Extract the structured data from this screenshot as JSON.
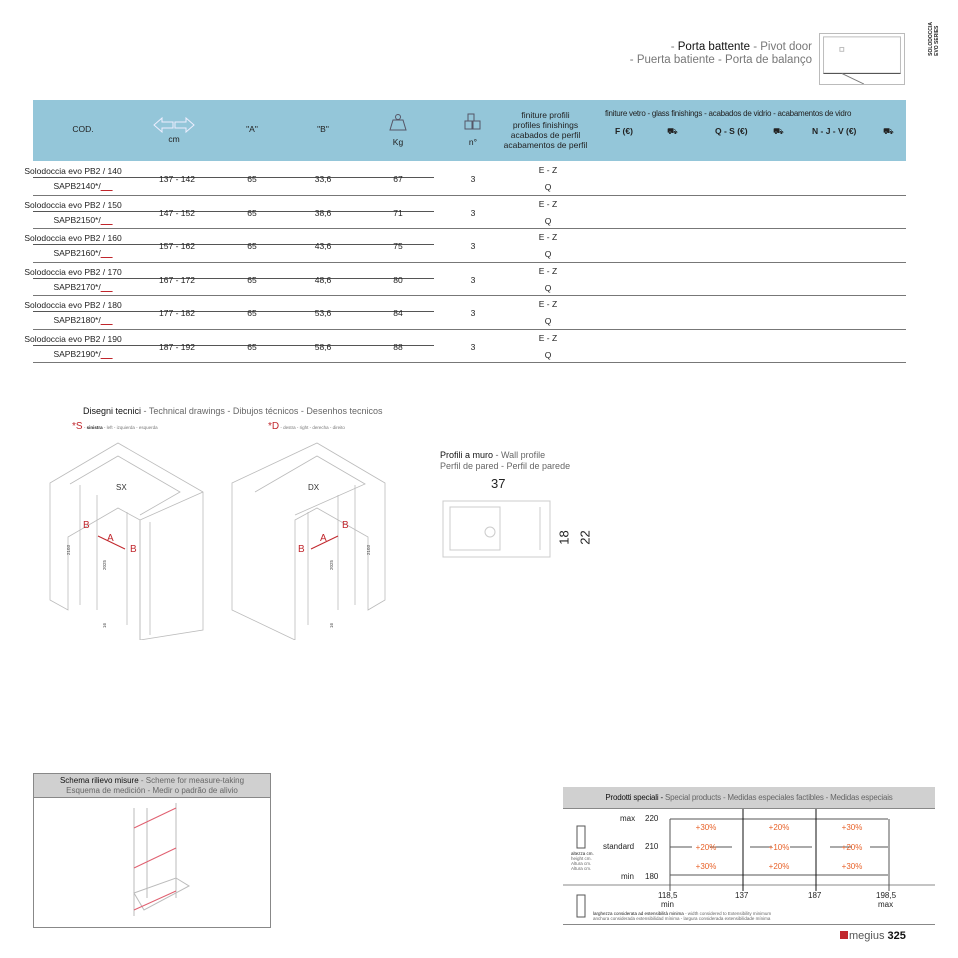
{
  "series_label": [
    "SOLODOCCIA",
    "EVO SERIES"
  ],
  "title": {
    "main": "Porta battente",
    "line1_rest": " - Pivot door",
    "line2": "- Puerta batiente - Porta de balanço"
  },
  "table": {
    "headers": {
      "cod": "COD.",
      "size_unit": "cm",
      "a": "\"A\"",
      "b": "\"B\"",
      "kg": "Kg",
      "n": "n°",
      "profile_finishes": [
        "finiture profili",
        "profiles finishings",
        "acabados de perfil",
        "acabamentos de perfil"
      ],
      "glass_finishes": "finiture vetro - glass finishings - acabados de vidrio - acabamentos de vidro",
      "glass_cols": [
        "F (€)",
        "Q - S (€)",
        "N - J - V  (€)"
      ]
    },
    "icons": {
      "size": "double-arrow-icon",
      "kg": "weight-icon",
      "n": "boxes-icon",
      "delivery": "truck-icon"
    },
    "rows": [
      {
        "name": "Solodoccia evo PB2 / 140",
        "code": "SAPB2140*/",
        "size": "137 - 142",
        "a": "65",
        "b": "33,6",
        "kg": "67",
        "n": "3",
        "fin1": "E - Z",
        "fin2": "Q"
      },
      {
        "name": "Solodoccia evo PB2 / 150",
        "code": "SAPB2150*/",
        "size": "147 - 152",
        "a": "65",
        "b": "38,6",
        "kg": "71",
        "n": "3",
        "fin1": "E - Z",
        "fin2": "Q"
      },
      {
        "name": "Solodoccia evo PB2 / 160",
        "code": "SAPB2160*/",
        "size": "157 - 162",
        "a": "65",
        "b": "43,6",
        "kg": "75",
        "n": "3",
        "fin1": "E - Z",
        "fin2": "Q"
      },
      {
        "name": "Solodoccia evo PB2 / 170",
        "code": "SAPB2170*/",
        "size": "167 - 172",
        "a": "65",
        "b": "48,6",
        "kg": "80",
        "n": "3",
        "fin1": "E - Z",
        "fin2": "Q"
      },
      {
        "name": "Solodoccia evo PB2 / 180",
        "code": "SAPB2180*/",
        "size": "177 - 182",
        "a": "65",
        "b": "53,6",
        "kg": "84",
        "n": "3",
        "fin1": "E - Z",
        "fin2": "Q"
      },
      {
        "name": "Solodoccia evo PB2 / 190",
        "code": "SAPB2190*/",
        "size": "187 - 192",
        "a": "65",
        "b": "58,6",
        "kg": "88",
        "n": "3",
        "fin1": "E - Z",
        "fin2": "Q"
      }
    ]
  },
  "drawings": {
    "title": "Disegni tecnici",
    "title_rest": " - Technical drawings - Dibujos técnicos - Desenhos tecnicos",
    "s_mark": "*S",
    "s_bold": "sinistra",
    "s_rest": " - left - izquierda - esquerda",
    "d_mark": "*D",
    "d_rest": " - destra - right - derecha - direito",
    "sx": "SX",
    "dx": "DX",
    "label_a": "A",
    "label_b": "B",
    "height_total": "2103",
    "height_door": "2025",
    "gap": "16"
  },
  "wall_profile": {
    "title": "Profili a muro",
    "title_rest": " - Wall profile",
    "line2": "Perfil de pared - Perfil de parede",
    "dim_w": "37",
    "dim_h1": "18",
    "dim_h2": "22"
  },
  "scheme": {
    "title": "Schema rilievo misure",
    "title_rest": " - Scheme for measure-taking",
    "line2": "Esquema de medición - Medir o padrão de alivio"
  },
  "special": {
    "title": "Prodotti speciali -",
    "title_rest": " Special products  - Medidas especiales factibles - Medidas especiais",
    "y_labels": [
      {
        "name": "max",
        "value": "220"
      },
      {
        "name": "standard",
        "value": "210"
      },
      {
        "name": "min",
        "value": "180"
      }
    ],
    "height_label": [
      "altezza cm.",
      "height cm.",
      "Altura cm.",
      "Altura cm."
    ],
    "grid": [
      [
        "+30%",
        "+20%",
        "+30%"
      ],
      [
        "+20%",
        "+10%",
        "+20%"
      ],
      [
        "+30%",
        "+20%",
        "+30%"
      ]
    ],
    "x_labels": [
      "118,5",
      "137",
      "187",
      "198,5"
    ],
    "x_min": "min",
    "x_max": "max",
    "width_note_bold": "larghezza considerata ad estensibilità minima",
    "width_note_rest": " - width considered to Extensibility minimum",
    "width_note_line2": "anchura considerada extensibilidad mínima - largura considerada extensibilidade mínima"
  },
  "footer": {
    "brand": "megius",
    "page": "325"
  },
  "colors": {
    "header_blue": "#94c6d9",
    "accent_red": "#c1272d",
    "percent_orange": "#e8622a",
    "gray_header": "#d0d0d0"
  }
}
